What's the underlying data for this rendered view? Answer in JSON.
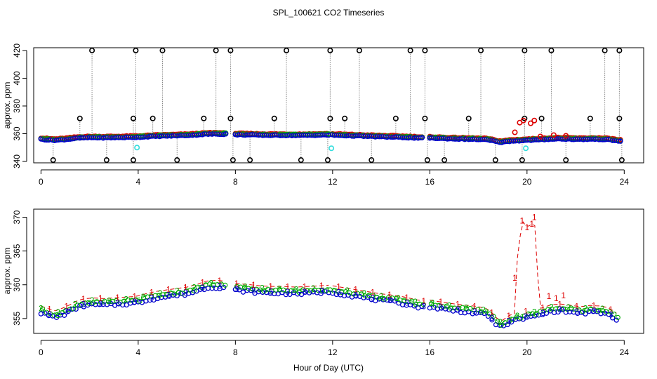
{
  "title": "SPL_100621  CO2 Timeseries",
  "xlabel": "Hour of Day (UTC)",
  "chart_data": [
    {
      "type": "scatter",
      "panel": "top",
      "ylabel": "approx. ppm",
      "xlim": [
        -0.3,
        24.8
      ],
      "ylim": [
        339,
        422
      ],
      "xticks": [
        0,
        4,
        8,
        12,
        16,
        20,
        24
      ],
      "yticks": [
        340,
        360,
        380,
        400,
        420
      ],
      "series": [
        {
          "name": "black",
          "color": "#000000",
          "marker": "o"
        },
        {
          "name": "red",
          "color": "#dd0000",
          "marker": "o"
        },
        {
          "name": "green",
          "color": "#00aa00",
          "marker": "o"
        },
        {
          "name": "blue",
          "color": "#0000cc",
          "marker": "o"
        },
        {
          "name": "cyan",
          "color": "#33dddd",
          "marker": "o"
        }
      ],
      "spikes_high": [
        2.1,
        3.9,
        5.0,
        7.2,
        7.8,
        10.1,
        11.9,
        13.1,
        15.2,
        15.8,
        18.1,
        19.9,
        21.0,
        23.2,
        23.8
      ],
      "spikes_mid": [
        1.6,
        3.8,
        4.6,
        6.7,
        7.8,
        9.6,
        11.9,
        12.5,
        14.6,
        15.8,
        17.6,
        19.9,
        20.6,
        22.6,
        23.8
      ],
      "spikes_low": [
        0.5,
        2.7,
        3.8,
        5.6,
        7.9,
        8.6,
        10.7,
        11.8,
        13.6,
        15.9,
        16.6,
        18.7,
        19.8,
        21.6,
        23.9
      ],
      "cyan_points": [
        {
          "x": 3.95,
          "y": 350
        },
        {
          "x": 11.95,
          "y": 349.5
        },
        {
          "x": 19.95,
          "y": 349.5
        }
      ],
      "red_outliers": [
        {
          "x": 19.5,
          "y": 361
        },
        {
          "x": 19.7,
          "y": 368
        },
        {
          "x": 19.85,
          "y": 369.5
        },
        {
          "x": 20.15,
          "y": 367.5
        },
        {
          "x": 20.3,
          "y": 369.5
        },
        {
          "x": 20.55,
          "y": 358
        },
        {
          "x": 21.1,
          "y": 359
        },
        {
          "x": 21.6,
          "y": 358.5
        }
      ]
    },
    {
      "type": "line",
      "panel": "bottom",
      "ylabel": "approx. ppm",
      "xlim": [
        -0.3,
        24.8
      ],
      "ylim": [
        352.8,
        371.2
      ],
      "xticks": [
        0,
        4,
        8,
        12,
        16,
        20,
        24
      ],
      "yticks": [
        355,
        360,
        365,
        370
      ],
      "series": [
        {
          "name": "1",
          "color": "#dd0000",
          "offset": 0.55
        },
        {
          "name": "2",
          "color": "#00aa00",
          "offset": 0.2
        },
        {
          "name": "3",
          "color": "#0000cc",
          "offset": -0.25
        }
      ],
      "spike": [
        {
          "x": 19.5,
          "y": 361
        },
        {
          "x": 19.8,
          "y": 369.5
        },
        {
          "x": 20.0,
          "y": 368.5
        },
        {
          "x": 20.2,
          "y": 369.0
        },
        {
          "x": 20.3,
          "y": 370.0
        },
        {
          "x": 20.5,
          "y": 357.5
        }
      ],
      "baseline": [
        {
          "x": 0.0,
          "y": 356.3
        },
        {
          "x": 0.3,
          "y": 355.9
        },
        {
          "x": 0.6,
          "y": 355.6
        },
        {
          "x": 0.9,
          "y": 356.0
        },
        {
          "x": 1.2,
          "y": 356.5
        },
        {
          "x": 1.5,
          "y": 357.1
        },
        {
          "x": 1.8,
          "y": 357.4
        },
        {
          "x": 2.2,
          "y": 357.5
        },
        {
          "x": 2.6,
          "y": 357.4
        },
        {
          "x": 3.0,
          "y": 357.5
        },
        {
          "x": 3.4,
          "y": 357.6
        },
        {
          "x": 3.8,
          "y": 357.7
        },
        {
          "x": 4.0,
          "y": 357.8
        },
        {
          "x": 4.4,
          "y": 358.2
        },
        {
          "x": 4.8,
          "y": 358.5
        },
        {
          "x": 5.2,
          "y": 358.7
        },
        {
          "x": 5.6,
          "y": 358.9
        },
        {
          "x": 6.0,
          "y": 359.1
        },
        {
          "x": 6.4,
          "y": 359.5
        },
        {
          "x": 6.8,
          "y": 360.0
        },
        {
          "x": 7.2,
          "y": 360.1
        },
        {
          "x": 7.6,
          "y": 360.0
        },
        {
          "x": 7.8,
          "y": 359.7
        },
        {
          "x": 8.1,
          "y": 359.6
        },
        {
          "x": 8.5,
          "y": 359.5
        },
        {
          "x": 9.0,
          "y": 359.3
        },
        {
          "x": 9.5,
          "y": 359.2
        },
        {
          "x": 10.0,
          "y": 359.2
        },
        {
          "x": 10.5,
          "y": 359.1
        },
        {
          "x": 11.0,
          "y": 359.2
        },
        {
          "x": 11.5,
          "y": 359.3
        },
        {
          "x": 11.8,
          "y": 359.4
        },
        {
          "x": 12.0,
          "y": 359.3
        },
        {
          "x": 12.5,
          "y": 359.0
        },
        {
          "x": 13.0,
          "y": 358.7
        },
        {
          "x": 13.5,
          "y": 358.4
        },
        {
          "x": 14.0,
          "y": 358.1
        },
        {
          "x": 14.5,
          "y": 357.9
        },
        {
          "x": 15.0,
          "y": 357.6
        },
        {
          "x": 15.5,
          "y": 357.2
        },
        {
          "x": 15.8,
          "y": 357.0
        },
        {
          "x": 16.0,
          "y": 357.2
        },
        {
          "x": 16.3,
          "y": 357.0
        },
        {
          "x": 16.8,
          "y": 356.7
        },
        {
          "x": 17.3,
          "y": 356.5
        },
        {
          "x": 17.8,
          "y": 356.3
        },
        {
          "x": 18.3,
          "y": 356.0
        },
        {
          "x": 18.6,
          "y": 355.2
        },
        {
          "x": 18.8,
          "y": 354.3
        },
        {
          "x": 19.0,
          "y": 354.2
        },
        {
          "x": 19.3,
          "y": 355.0
        },
        {
          "x": 19.6,
          "y": 355.2
        },
        {
          "x": 19.9,
          "y": 355.5
        },
        {
          "x": 20.2,
          "y": 355.7
        },
        {
          "x": 20.6,
          "y": 356.0
        },
        {
          "x": 21.0,
          "y": 356.5
        },
        {
          "x": 21.4,
          "y": 356.6
        },
        {
          "x": 21.8,
          "y": 356.4
        },
        {
          "x": 22.2,
          "y": 356.2
        },
        {
          "x": 22.6,
          "y": 356.4
        },
        {
          "x": 23.0,
          "y": 356.3
        },
        {
          "x": 23.3,
          "y": 356.1
        },
        {
          "x": 23.6,
          "y": 355.5
        },
        {
          "x": 23.75,
          "y": 355.0
        }
      ]
    }
  ]
}
